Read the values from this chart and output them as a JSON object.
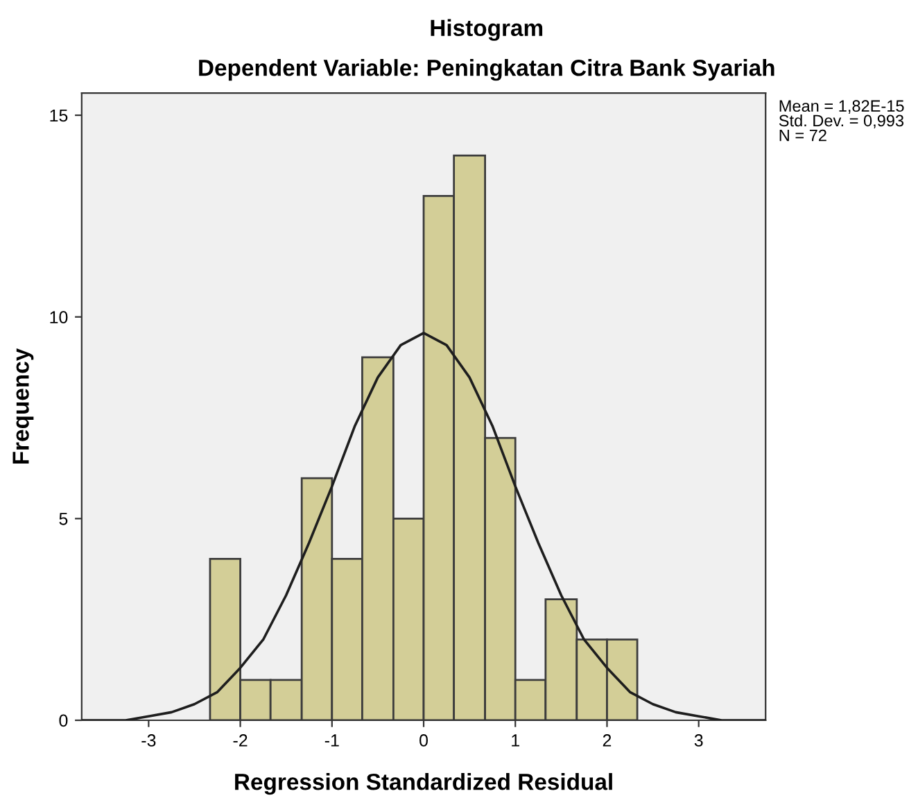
{
  "chart_data": {
    "type": "histogram",
    "title": "Histogram",
    "subtitle": "Dependent Variable: Peningkatan Citra Bank Syariah",
    "xlabel": "Regression Standardized Residual",
    "ylabel": "Frequency",
    "bins": [
      -2.33,
      -2,
      -1.67,
      -1.33,
      -1,
      -0.67,
      -0.33,
      0,
      0.33,
      0.67,
      1,
      1.33,
      1.67,
      2,
      2.33
    ],
    "series": [
      {
        "color": "#d3ce97",
        "values": [
          4,
          1,
          1,
          6,
          4,
          9,
          5,
          13,
          14,
          7,
          1,
          3,
          2,
          2
        ]
      },
      {
        "type": "line",
        "color": "#1e1e1e",
        "x": [
          -3.73,
          -3.5,
          -3.25,
          -3,
          -2.75,
          -2.5,
          -2.25,
          -2,
          -1.75,
          -1.5,
          -1.25,
          -1,
          -0.75,
          -0.5,
          -0.25,
          0,
          0.25,
          0.5,
          0.75,
          1,
          1.25,
          1.5,
          1.75,
          2,
          2.25,
          2.5,
          2.75,
          3,
          3.25,
          3.5,
          3.73
        ],
        "values": [
          0.0,
          0.0,
          0.0,
          0.1,
          0.2,
          0.4,
          0.7,
          1.3,
          2.0,
          3.1,
          4.4,
          5.8,
          7.3,
          8.5,
          9.3,
          9.6,
          9.3,
          8.5,
          7.3,
          5.8,
          4.4,
          3.1,
          2.0,
          1.3,
          0.7,
          0.4,
          0.2,
          0.1,
          0.0,
          0.0,
          0.0
        ]
      }
    ],
    "xlim": [
      -3.73,
      3.73
    ],
    "ylim": [
      0,
      15.55
    ],
    "xticks": [
      -3,
      -2,
      -1,
      0,
      1,
      2,
      3
    ],
    "yticks": [
      0,
      5,
      10,
      15
    ],
    "grid": false,
    "annotations": [
      "Mean = 1,82E-15",
      "Std. Dev. = 0,993",
      "N = 72"
    ]
  }
}
